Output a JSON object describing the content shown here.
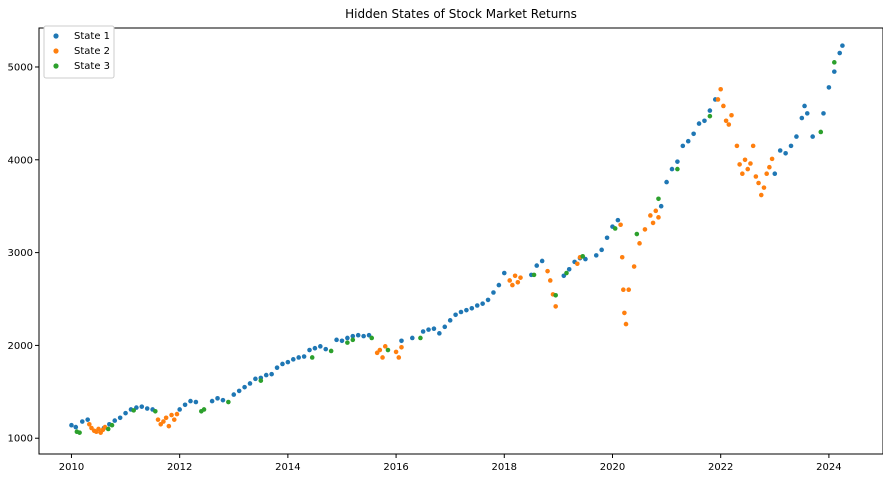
{
  "chart_data": {
    "type": "scatter",
    "title": "Hidden States of Stock Market Returns",
    "xlabel": "",
    "ylabel": "",
    "xlim": [
      2009.4,
      2025.0
    ],
    "ylim": [
      830,
      5420
    ],
    "xticks": [
      2010,
      2012,
      2014,
      2016,
      2018,
      2020,
      2022,
      2024
    ],
    "xtick_labels": [
      "2010",
      "2012",
      "2014",
      "2016",
      "2018",
      "2020",
      "2022",
      "2024"
    ],
    "yticks": [
      1000,
      2000,
      3000,
      4000,
      5000
    ],
    "ytick_labels": [
      "1000",
      "2000",
      "3000",
      "4000",
      "5000"
    ],
    "grid": false,
    "legend": "top-left",
    "series": [
      {
        "name": "State 1",
        "color": "#1f77b4",
        "x": [
          2010.0,
          2010.08,
          2010.2,
          2010.3,
          2010.6,
          2010.7,
          2010.8,
          2010.9,
          2011.0,
          2011.1,
          2011.2,
          2011.3,
          2011.4,
          2011.5,
          2012.0,
          2012.1,
          2012.2,
          2012.3,
          2012.6,
          2012.7,
          2012.8,
          2013.0,
          2013.1,
          2013.2,
          2013.3,
          2013.4,
          2013.5,
          2013.6,
          2013.7,
          2013.8,
          2013.9,
          2014.0,
          2014.1,
          2014.2,
          2014.3,
          2014.4,
          2014.5,
          2014.6,
          2014.7,
          2014.9,
          2015.0,
          2015.1,
          2015.2,
          2015.3,
          2015.4,
          2015.5,
          2016.1,
          2016.3,
          2016.5,
          2016.6,
          2016.7,
          2016.8,
          2016.9,
          2017.0,
          2017.1,
          2017.2,
          2017.3,
          2017.4,
          2017.5,
          2017.6,
          2017.7,
          2017.8,
          2017.9,
          2018.0,
          2018.5,
          2018.6,
          2018.7,
          2019.1,
          2019.2,
          2019.3,
          2019.4,
          2019.5,
          2019.7,
          2019.8,
          2019.9,
          2020.0,
          2020.1,
          2020.9,
          2021.0,
          2021.1,
          2021.2,
          2021.3,
          2021.4,
          2021.5,
          2021.6,
          2021.7,
          2021.8,
          2021.9,
          2023.0,
          2023.1,
          2023.2,
          2023.3,
          2023.4,
          2023.5,
          2023.55,
          2023.6,
          2023.7,
          2023.9,
          2024.0,
          2024.1,
          2024.2,
          2024.25
        ],
        "y": [
          1140,
          1120,
          1180,
          1200,
          1110,
          1150,
          1190,
          1220,
          1270,
          1310,
          1330,
          1340,
          1320,
          1310,
          1310,
          1360,
          1400,
          1390,
          1400,
          1430,
          1410,
          1470,
          1510,
          1550,
          1590,
          1640,
          1650,
          1680,
          1690,
          1760,
          1800,
          1820,
          1850,
          1870,
          1880,
          1950,
          1970,
          1990,
          1960,
          2060,
          2050,
          2080,
          2100,
          2110,
          2100,
          2110,
          2050,
          2080,
          2150,
          2170,
          2180,
          2130,
          2200,
          2270,
          2330,
          2360,
          2380,
          2400,
          2430,
          2450,
          2490,
          2570,
          2650,
          2780,
          2760,
          2860,
          2910,
          2750,
          2820,
          2900,
          2940,
          2930,
          2970,
          3030,
          3160,
          3280,
          3350,
          3500,
          3760,
          3900,
          3980,
          4150,
          4200,
          4280,
          4390,
          4420,
          4530,
          4650,
          3850,
          4100,
          4070,
          4150,
          4250,
          4450,
          4580,
          4500,
          4250,
          4500,
          4780,
          4950,
          5150,
          5230
        ]
      },
      {
        "name": "State 2",
        "color": "#ff7f0e",
        "x": [
          2010.33,
          2010.37,
          2010.42,
          2010.46,
          2010.5,
          2010.54,
          2010.58,
          2010.62,
          2011.6,
          2011.65,
          2011.7,
          2011.75,
          2011.8,
          2011.85,
          2011.9,
          2011.95,
          2015.65,
          2015.7,
          2015.75,
          2015.8,
          2016.0,
          2016.05,
          2016.1,
          2018.1,
          2018.15,
          2018.2,
          2018.25,
          2018.3,
          2018.8,
          2018.85,
          2018.9,
          2018.95,
          2019.35,
          2019.4,
          2020.15,
          2020.18,
          2020.2,
          2020.22,
          2020.25,
          2020.3,
          2020.4,
          2020.5,
          2020.6,
          2020.7,
          2020.75,
          2020.8,
          2020.85,
          2021.95,
          2022.0,
          2022.05,
          2022.1,
          2022.15,
          2022.2,
          2022.3,
          2022.35,
          2022.4,
          2022.45,
          2022.5,
          2022.55,
          2022.6,
          2022.65,
          2022.7,
          2022.75,
          2022.8,
          2022.85,
          2022.9,
          2022.95
        ],
        "y": [
          1150,
          1110,
          1080,
          1070,
          1100,
          1060,
          1090,
          1120,
          1200,
          1150,
          1180,
          1220,
          1130,
          1250,
          1200,
          1260,
          1920,
          1950,
          1870,
          1990,
          1930,
          1870,
          1980,
          2700,
          2650,
          2750,
          2680,
          2730,
          2800,
          2700,
          2550,
          2420,
          2880,
          2950,
          3300,
          2950,
          2600,
          2350,
          2230,
          2600,
          2850,
          3100,
          3250,
          3400,
          3320,
          3450,
          3380,
          4650,
          4760,
          4580,
          4420,
          4380,
          4480,
          4150,
          3950,
          3850,
          4000,
          3900,
          3960,
          4150,
          3820,
          3750,
          3620,
          3700,
          3850,
          3920,
          4010
        ]
      },
      {
        "name": "State 3",
        "color": "#2ca02c",
        "x": [
          2010.1,
          2010.15,
          2010.68,
          2010.75,
          2011.15,
          2011.55,
          2012.4,
          2012.45,
          2012.9,
          2013.5,
          2014.45,
          2014.8,
          2015.1,
          2015.2,
          2015.55,
          2015.85,
          2016.45,
          2018.55,
          2018.95,
          2019.15,
          2019.45,
          2020.05,
          2020.45,
          2020.85,
          2021.2,
          2021.8,
          2023.85,
          2024.1
        ],
        "y": [
          1070,
          1060,
          1100,
          1140,
          1300,
          1290,
          1290,
          1310,
          1390,
          1620,
          1870,
          1940,
          2030,
          2060,
          2080,
          1950,
          2080,
          2760,
          2540,
          2780,
          2960,
          3260,
          3200,
          3580,
          3900,
          4470,
          4300,
          5050
        ]
      }
    ]
  }
}
